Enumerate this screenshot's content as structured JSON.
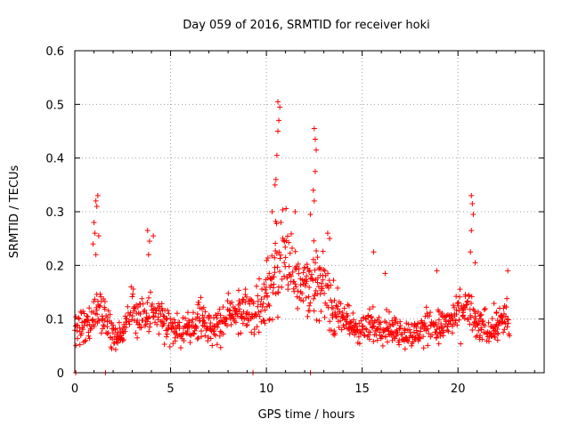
{
  "chart_data": {
    "type": "scatter",
    "title": "Day 059 of 2016, SRMTID for receiver hoki",
    "xlabel": "GPS time / hours",
    "ylabel": "SRMTID / TECUs",
    "xlim": [
      0,
      24.5
    ],
    "ylim": [
      0,
      0.6
    ],
    "xticks": [
      0,
      5,
      10,
      15,
      20
    ],
    "xtick_labels": [
      "0",
      "5",
      "10",
      "15",
      "20"
    ],
    "yticks": [
      0,
      0.1,
      0.2,
      0.3,
      0.4,
      0.5,
      0.6
    ],
    "ytick_labels": [
      "0",
      "0.1",
      "0.2",
      "0.3",
      "0.4",
      "0.5",
      "0.6"
    ],
    "grid": true,
    "marker": "+",
    "series": [
      {
        "name": "SRMTID",
        "color": "#ff0000",
        "profile": [
          [
            0.0,
            0.085
          ],
          [
            0.5,
            0.09
          ],
          [
            1.0,
            0.1
          ],
          [
            1.3,
            0.12
          ],
          [
            1.6,
            0.1
          ],
          [
            2.0,
            0.065
          ],
          [
            2.5,
            0.075
          ],
          [
            3.0,
            0.12
          ],
          [
            3.4,
            0.1
          ],
          [
            3.8,
            0.11
          ],
          [
            4.5,
            0.1
          ],
          [
            5.0,
            0.09
          ],
          [
            5.5,
            0.075
          ],
          [
            6.0,
            0.09
          ],
          [
            6.5,
            0.1
          ],
          [
            7.0,
            0.085
          ],
          [
            7.5,
            0.09
          ],
          [
            8.0,
            0.1
          ],
          [
            8.5,
            0.12
          ],
          [
            9.0,
            0.105
          ],
          [
            9.5,
            0.12
          ],
          [
            10.0,
            0.15
          ],
          [
            10.5,
            0.2
          ],
          [
            11.0,
            0.22
          ],
          [
            11.5,
            0.19
          ],
          [
            12.0,
            0.17
          ],
          [
            12.5,
            0.17
          ],
          [
            13.0,
            0.16
          ],
          [
            13.5,
            0.12
          ],
          [
            14.0,
            0.1
          ],
          [
            14.5,
            0.085
          ],
          [
            15.0,
            0.08
          ],
          [
            15.5,
            0.085
          ],
          [
            16.0,
            0.09
          ],
          [
            16.5,
            0.085
          ],
          [
            17.0,
            0.075
          ],
          [
            17.5,
            0.07
          ],
          [
            18.0,
            0.075
          ],
          [
            18.5,
            0.09
          ],
          [
            19.0,
            0.085
          ],
          [
            19.5,
            0.09
          ],
          [
            20.0,
            0.105
          ],
          [
            20.5,
            0.12
          ],
          [
            21.0,
            0.085
          ],
          [
            21.5,
            0.085
          ],
          [
            22.0,
            0.09
          ],
          [
            22.5,
            0.1
          ],
          [
            22.7,
            0.09
          ]
        ],
        "outliers": [
          [
            1.1,
            0.32
          ],
          [
            1.2,
            0.33
          ],
          [
            1.15,
            0.31
          ],
          [
            1.0,
            0.28
          ],
          [
            1.05,
            0.26
          ],
          [
            1.25,
            0.255
          ],
          [
            0.95,
            0.24
          ],
          [
            1.1,
            0.22
          ],
          [
            3.8,
            0.265
          ],
          [
            3.9,
            0.245
          ],
          [
            4.1,
            0.255
          ],
          [
            3.85,
            0.22
          ],
          [
            10.6,
            0.505
          ],
          [
            10.7,
            0.495
          ],
          [
            10.65,
            0.47
          ],
          [
            10.6,
            0.45
          ],
          [
            10.55,
            0.405
          ],
          [
            10.5,
            0.36
          ],
          [
            10.45,
            0.35
          ],
          [
            10.3,
            0.3
          ],
          [
            12.5,
            0.455
          ],
          [
            12.55,
            0.435
          ],
          [
            12.6,
            0.415
          ],
          [
            12.55,
            0.375
          ],
          [
            12.45,
            0.34
          ],
          [
            12.5,
            0.32
          ],
          [
            12.3,
            0.295
          ],
          [
            11.5,
            0.3
          ],
          [
            13.2,
            0.26
          ],
          [
            13.3,
            0.25
          ],
          [
            20.7,
            0.33
          ],
          [
            20.75,
            0.315
          ],
          [
            20.8,
            0.295
          ],
          [
            20.7,
            0.265
          ],
          [
            20.65,
            0.225
          ],
          [
            20.9,
            0.205
          ],
          [
            15.6,
            0.225
          ],
          [
            16.2,
            0.185
          ],
          [
            18.9,
            0.19
          ],
          [
            22.6,
            0.19
          ],
          [
            0.05,
            0.0
          ],
          [
            1.6,
            0.0
          ],
          [
            9.3,
            0.0
          ],
          [
            12.3,
            0.0
          ]
        ]
      }
    ]
  }
}
